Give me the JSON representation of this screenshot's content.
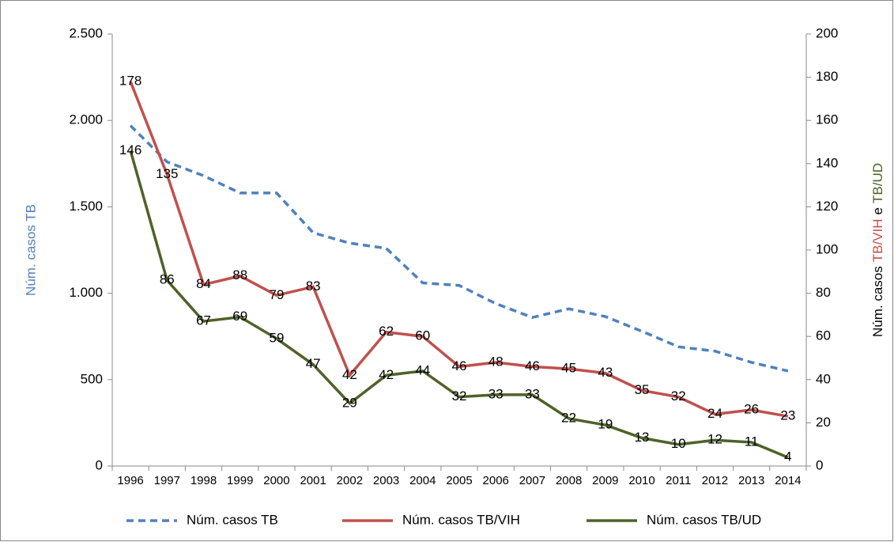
{
  "chart_data": {
    "type": "line",
    "categories": [
      "1996",
      "1997",
      "1998",
      "1999",
      "2000",
      "2001",
      "2002",
      "2003",
      "2004",
      "2005",
      "2006",
      "2007",
      "2008",
      "2009",
      "2010",
      "2011",
      "2012",
      "2013",
      "2014"
    ],
    "y_label": "Núm. casos TB",
    "y2_label_parts": [
      "Núm. casos",
      "TB/VIH",
      "e",
      "TB/UD"
    ],
    "ylim": [
      0,
      2500
    ],
    "yticks": [
      0,
      500,
      {
        "value": 1000,
        "label": "1.000"
      },
      {
        "value": 1500,
        "label": "1.500"
      },
      {
        "value": 2000,
        "label": "2.000"
      },
      {
        "value": 2500,
        "label": "2.500"
      }
    ],
    "y2lim": [
      0,
      200
    ],
    "y2ticks": [
      0,
      20,
      40,
      60,
      80,
      100,
      120,
      140,
      160,
      180,
      200
    ],
    "legend": "bottom",
    "series": [
      {
        "name": "Núm. casos TB",
        "color": "#4f81bd",
        "dashed": true,
        "values": [
          1970,
          1760,
          1680,
          1580,
          1580,
          1350,
          1290,
          1260,
          1060,
          1045,
          940,
          860,
          910,
          865,
          780,
          690,
          665,
          600,
          550
        ]
      },
      {
        "name": "Núm. casos TB/VIH",
        "color": "#c0504d",
        "axis": "y2",
        "show_labels": true,
        "values": [
          178,
          135,
          84,
          88,
          79,
          83,
          42,
          62,
          60,
          46,
          48,
          46,
          45,
          43,
          35,
          32,
          24,
          26,
          23
        ]
      },
      {
        "name": "Núm. casos TB/UD",
        "color": "#4f6228",
        "axis": "y2",
        "show_labels": true,
        "values": [
          146,
          86,
          67,
          69,
          59,
          47,
          29,
          42,
          44,
          32,
          33,
          33,
          22,
          19,
          13,
          10,
          12,
          11,
          4
        ]
      }
    ]
  }
}
